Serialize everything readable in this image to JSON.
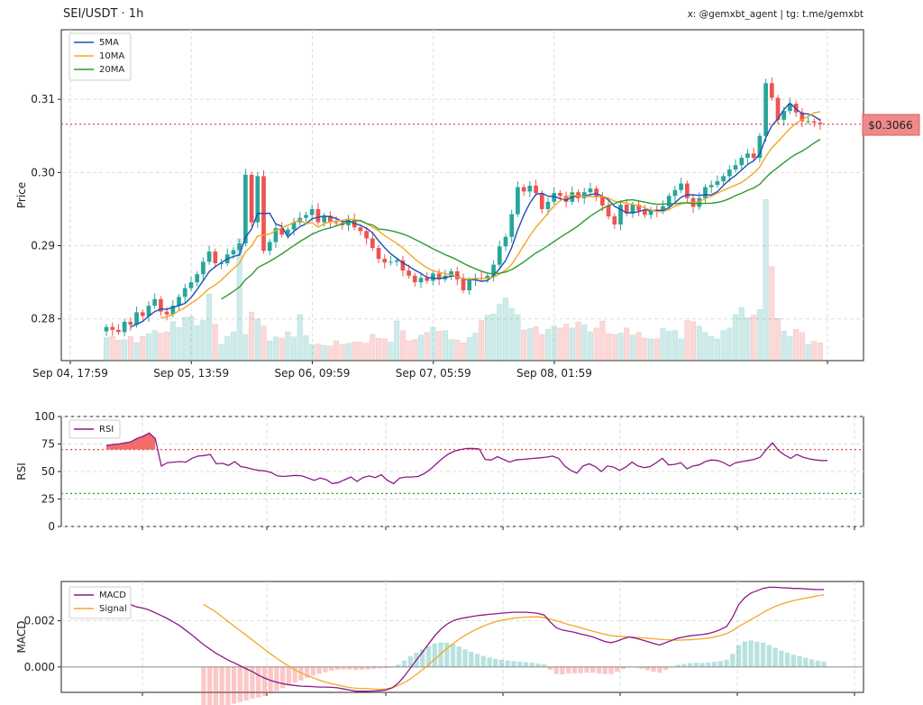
{
  "header": {
    "title": "SEI/USDT · 1h",
    "credit": "x: @gemxbt_agent | tg: t.me/gemxbt"
  },
  "colors": {
    "up": "#26a69a",
    "down": "#ef5350",
    "ma5": "#1f4fb4",
    "ma10": "#f5a623",
    "ma20": "#2e9a2e",
    "rsi": "#8b1a8b",
    "macd": "#8b1a8b",
    "signal": "#f5a623",
    "price_line": "#e84a4a"
  },
  "chart_data": [
    {
      "type": "candlestick",
      "name": "price",
      "ylabel": "Price",
      "ylim": [
        0.2743,
        0.3195
      ],
      "yticks": [
        0.28,
        0.29,
        0.3,
        0.31
      ],
      "ytick_labels": [
        "0.28",
        "0.29",
        "0.30",
        "0.31"
      ],
      "x_count": 119,
      "xticks_index": [
        0,
        20,
        40,
        60,
        80
      ],
      "xtick_labels": [
        "Sep 04, 17:59",
        "Sep 05, 13:59",
        "Sep 06, 09:59",
        "Sep 07, 05:59",
        "Sep 08, 01:59"
      ],
      "grid": true,
      "legend_position": "top-left",
      "legend": [
        "5MA",
        "10MA",
        "20MA"
      ],
      "current_price": 0.3066,
      "current_price_label": "$0.3066",
      "close": [
        0.2789,
        0.2785,
        0.2782,
        0.2796,
        0.2792,
        0.2809,
        0.2804,
        0.2818,
        0.2827,
        0.281,
        0.2806,
        0.2818,
        0.283,
        0.2842,
        0.285,
        0.2861,
        0.2878,
        0.2892,
        0.2876,
        0.2876,
        0.2888,
        0.2894,
        0.2903,
        0.2997,
        0.2932,
        0.2995,
        0.2893,
        0.2905,
        0.2924,
        0.2915,
        0.2922,
        0.2932,
        0.2938,
        0.2942,
        0.295,
        0.2932,
        0.2941,
        0.2932,
        0.2931,
        0.2928,
        0.2936,
        0.2925,
        0.292,
        0.291,
        0.2897,
        0.2882,
        0.2877,
        0.2878,
        0.288,
        0.2866,
        0.2859,
        0.285,
        0.2856,
        0.2852,
        0.2862,
        0.2854,
        0.2859,
        0.2865,
        0.2854,
        0.2839,
        0.2853,
        0.2856,
        0.2855,
        0.2859,
        0.2874,
        0.2899,
        0.2912,
        0.2943,
        0.298,
        0.2974,
        0.2982,
        0.2972,
        0.295,
        0.296,
        0.2972,
        0.2968,
        0.296,
        0.2973,
        0.2965,
        0.2973,
        0.2978,
        0.2967,
        0.2955,
        0.294,
        0.2929,
        0.2956,
        0.2944,
        0.2956,
        0.2948,
        0.2942,
        0.2949,
        0.2947,
        0.2954,
        0.2968,
        0.2976,
        0.2985,
        0.2965,
        0.2953,
        0.2965,
        0.298,
        0.2983,
        0.2988,
        0.2995,
        0.3004,
        0.301,
        0.302,
        0.3026,
        0.302,
        0.305,
        0.3122,
        0.3102,
        0.3072,
        0.3084,
        0.3094,
        0.3082,
        0.307,
        0.307,
        0.3068,
        0.3066
      ],
      "volume_max": 0.3,
      "volume": [
        0.036,
        0.038,
        0.032,
        0.033,
        0.038,
        0.028,
        0.038,
        0.042,
        0.047,
        0.043,
        0.045,
        0.061,
        0.052,
        0.068,
        0.069,
        0.055,
        0.063,
        0.104,
        0.057,
        0.025,
        0.038,
        0.045,
        0.191,
        0.041,
        0.076,
        0.065,
        0.054,
        0.031,
        0.037,
        0.035,
        0.045,
        0.037,
        0.072,
        0.039,
        0.025,
        0.026,
        0.024,
        0.023,
        0.031,
        0.025,
        0.027,
        0.029,
        0.029,
        0.027,
        0.041,
        0.035,
        0.034,
        0.029,
        0.062,
        0.047,
        0.031,
        0.033,
        0.04,
        0.044,
        0.052,
        0.046,
        0.047,
        0.033,
        0.032,
        0.028,
        0.036,
        0.043,
        0.063,
        0.071,
        0.073,
        0.088,
        0.098,
        0.082,
        0.072,
        0.048,
        0.05,
        0.053,
        0.041,
        0.049,
        0.054,
        0.051,
        0.057,
        0.051,
        0.06,
        0.056,
        0.045,
        0.051,
        0.062,
        0.042,
        0.041,
        0.043,
        0.051,
        0.04,
        0.044,
        0.035,
        0.034,
        0.034,
        0.05,
        0.046,
        0.047,
        0.034,
        0.063,
        0.061,
        0.054,
        0.044,
        0.038,
        0.034,
        0.047,
        0.051,
        0.072,
        0.083,
        0.067,
        0.071,
        0.08,
        0.252,
        0.147,
        0.066,
        0.046,
        0.038,
        0.049,
        0.044,
        0.025,
        0.03,
        0.028
      ]
    },
    {
      "type": "line",
      "name": "rsi",
      "ylabel": "RSI",
      "ylim": [
        0,
        100
      ],
      "yticks": [
        0,
        25,
        50,
        75,
        100
      ],
      "overbought": 70,
      "oversold": 30,
      "legend": [
        "RSI"
      ],
      "x_count": 119,
      "values": [
        73.5,
        74.5,
        75.0,
        76.0,
        77.0,
        80.0,
        82.0,
        85.0,
        80.0,
        55.0,
        58.0,
        58.5,
        59.0,
        58.5,
        62.0,
        64.0,
        64.5,
        65.5,
        57.0,
        57.5,
        55.5,
        59.0,
        54.5,
        53.5,
        52.0,
        51.0,
        50.5,
        49.0,
        46.0,
        45.5,
        46.0,
        46.5,
        46.0,
        44.0,
        42.0,
        44.0,
        42.5,
        39.0,
        40.0,
        42.5,
        45.0,
        41.0,
        44.5,
        46.0,
        44.5,
        47.0,
        42.0,
        39.0,
        44.0,
        45.0,
        45.0,
        45.5,
        48.0,
        52.0,
        57.0,
        62.0,
        66.0,
        68.5,
        70.0,
        71.0,
        71.0,
        70.5,
        61.0,
        60.5,
        63.5,
        61.0,
        58.5,
        60.5,
        61.0,
        61.5,
        62.0,
        62.5,
        63.0,
        64.0,
        62.0,
        55.0,
        51.0,
        48.5,
        55.0,
        57.0,
        54.5,
        50.0,
        55.0,
        54.0,
        51.0,
        54.0,
        58.5,
        55.0,
        53.5,
        54.5,
        58.0,
        62.0,
        56.0,
        56.5,
        58.0,
        52.5,
        55.0,
        56.0,
        59.0,
        60.5,
        60.0,
        58.0,
        55.0,
        58.0,
        59.0,
        60.0,
        61.0,
        63.0,
        70.0,
        76.0,
        69.0,
        65.0,
        62.0,
        65.5,
        63.0,
        61.5,
        60.5,
        60.0,
        60.0
      ]
    },
    {
      "type": "line",
      "name": "macd",
      "ylabel": "MACD",
      "ylim": [
        -0.0011,
        0.0037
      ],
      "yticks": [
        0.0,
        0.002
      ],
      "ytick_labels": [
        "0.000",
        "0.002"
      ],
      "legend": [
        "MACD",
        "Signal"
      ],
      "x_count": 119,
      "macd": [
        0.00315,
        0.00305,
        0.00295,
        0.00283,
        0.0027,
        0.0026,
        0.00255,
        0.00247,
        0.00235,
        0.00223,
        0.0021,
        0.00195,
        0.0018,
        0.0016,
        0.0014,
        0.00118,
        0.00097,
        0.00078,
        0.0006,
        0.00045,
        0.0003,
        0.00018,
        5e-05,
        -8e-05,
        -0.0002,
        -0.00035,
        -0.00048,
        -0.00058,
        -0.00066,
        -0.00072,
        -0.00077,
        -0.0008,
        -0.00083,
        -0.00084,
        -0.00085,
        -0.00087,
        -0.00087,
        -0.00088,
        -0.0009,
        -0.00095,
        -0.001,
        -0.00105,
        -0.00105,
        -0.00105,
        -0.00104,
        -0.00103,
        -0.001,
        -0.0009,
        -0.0007,
        -0.0004,
        -5e-05,
        0.0003,
        0.00065,
        0.001,
        0.00135,
        0.00163,
        0.00185,
        0.002,
        0.00208,
        0.00213,
        0.00218,
        0.00222,
        0.00225,
        0.00228,
        0.0023,
        0.00233,
        0.00235,
        0.00237,
        0.00237,
        0.00237,
        0.00235,
        0.00232,
        0.00225,
        0.00195,
        0.0017,
        0.0016,
        0.00155,
        0.0015,
        0.00143,
        0.00137,
        0.0013,
        0.0012,
        0.0011,
        0.00105,
        0.00112,
        0.00122,
        0.0013,
        0.00125,
        0.00118,
        0.0011,
        0.00102,
        0.00095,
        0.00105,
        0.00115,
        0.00125,
        0.0013,
        0.00135,
        0.00138,
        0.0014,
        0.00145,
        0.00152,
        0.00162,
        0.00175,
        0.00215,
        0.0027,
        0.003,
        0.0032,
        0.0033,
        0.0034,
        0.00345,
        0.00345,
        0.00343,
        0.00342,
        0.0034,
        0.0034,
        0.00338,
        0.00336,
        0.00335,
        0.00335
      ],
      "signal": [
        null,
        null,
        null,
        null,
        null,
        null,
        null,
        null,
        null,
        null,
        null,
        null,
        null,
        null,
        null,
        null,
        0.0027,
        0.00255,
        0.00238,
        0.00218,
        0.00197,
        0.00177,
        0.00157,
        0.00137,
        0.00117,
        0.00097,
        0.00077,
        0.00057,
        0.00038,
        0.0002,
        4e-05,
        -0.00012,
        -0.00025,
        -0.00037,
        -0.00047,
        -0.00057,
        -0.00065,
        -0.00072,
        -0.00078,
        -0.00084,
        -0.00089,
        -0.00092,
        -0.00093,
        -0.00094,
        -0.00096,
        -0.00097,
        -0.00095,
        -0.0009,
        -0.0008,
        -0.00068,
        -0.00052,
        -0.00032,
        -0.00012,
        0.0001,
        0.00033,
        0.00057,
        0.0008,
        0.001,
        0.0012,
        0.00137,
        0.00152,
        0.00165,
        0.00177,
        0.00187,
        0.00195,
        0.00202,
        0.00207,
        0.00211,
        0.00214,
        0.00216,
        0.00217,
        0.00217,
        0.00213,
        0.00207,
        0.002,
        0.00192,
        0.00184,
        0.00177,
        0.0017,
        0.00162,
        0.00155,
        0.00148,
        0.00141,
        0.00136,
        0.00133,
        0.00131,
        0.0013,
        0.00128,
        0.00126,
        0.00124,
        0.00122,
        0.0012,
        0.00118,
        0.00117,
        0.00116,
        0.00117,
        0.00118,
        0.0012,
        0.00122,
        0.00125,
        0.0013,
        0.00136,
        0.00144,
        0.00158,
        0.00175,
        0.0019,
        0.00205,
        0.0022,
        0.00235,
        0.0025,
        0.00262,
        0.00272,
        0.0028,
        0.00287,
        0.00293,
        0.00298,
        0.00303,
        0.00308,
        0.00312
      ]
    }
  ]
}
